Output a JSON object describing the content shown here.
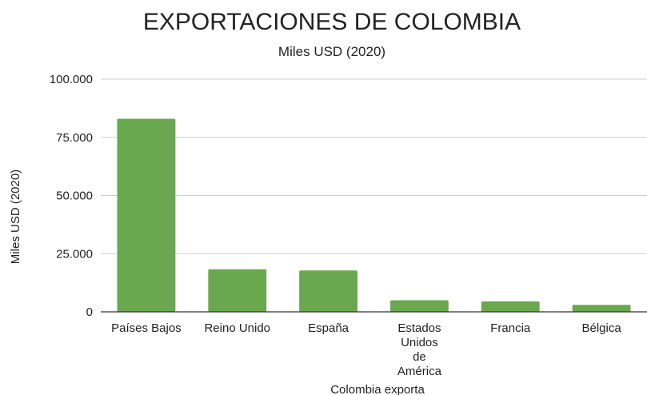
{
  "chart_data": {
    "type": "bar",
    "title": "EXPORTACIONES DE COLOMBIA",
    "subtitle": "Miles USD (2020)",
    "xlabel": "Colombia exporta",
    "ylabel": "Miles USD (2020)",
    "categories": [
      "Países Bajos",
      "Reino Unido",
      "España",
      "Estados Unidos de América",
      "Francia",
      "Bélgica"
    ],
    "values": [
      83000,
      18300,
      17800,
      5000,
      4500,
      3000
    ],
    "ylim": [
      0,
      100000
    ],
    "yticks": [
      0,
      25000,
      50000,
      75000,
      100000
    ],
    "ytick_labels": [
      "0",
      "25.000",
      "50.000",
      "75.000",
      "100.000"
    ],
    "grid": true,
    "legend": "none",
    "colors": {
      "bar": "#6aa84f",
      "grid": "#cccccc",
      "axis": "#333333"
    }
  }
}
